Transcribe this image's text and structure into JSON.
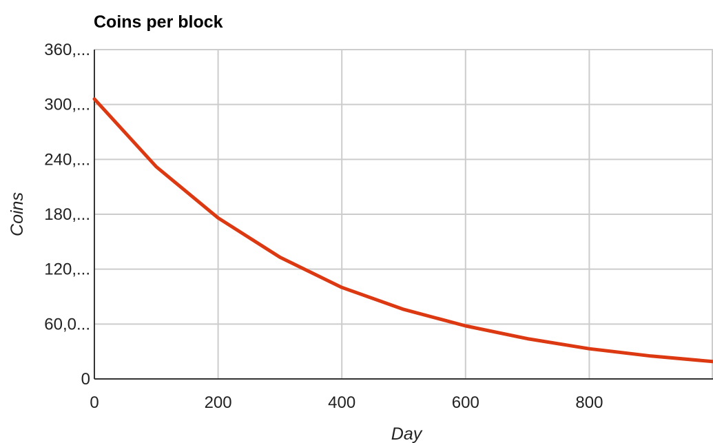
{
  "chart_data": {
    "type": "line",
    "title": "Coins per block",
    "xlabel": "Day",
    "ylabel": "Coins",
    "xlim": [
      0,
      1000
    ],
    "ylim": [
      0,
      360000
    ],
    "grid": true,
    "x_ticks": [
      {
        "value": 0,
        "label": "0"
      },
      {
        "value": 200,
        "label": "200"
      },
      {
        "value": 400,
        "label": "400"
      },
      {
        "value": 600,
        "label": "600"
      },
      {
        "value": 800,
        "label": "800"
      }
    ],
    "x_gridlines": [
      0,
      200,
      400,
      600,
      800,
      1000
    ],
    "y_ticks": [
      {
        "value": 0,
        "label": "0"
      },
      {
        "value": 60000,
        "label": "60,0..."
      },
      {
        "value": 120000,
        "label": "120,..."
      },
      {
        "value": 180000,
        "label": "180,..."
      },
      {
        "value": 240000,
        "label": "240,..."
      },
      {
        "value": 300000,
        "label": "300,..."
      },
      {
        "value": 360000,
        "label": "360,..."
      }
    ],
    "series": [
      {
        "color": "#dc3912",
        "x": [
          0,
          100,
          200,
          300,
          400,
          500,
          600,
          700,
          800,
          900,
          1000
        ],
        "y": [
          306000,
          232000,
          176000,
          133000,
          100000,
          76000,
          58000,
          44000,
          33000,
          25000,
          19000
        ]
      }
    ]
  }
}
